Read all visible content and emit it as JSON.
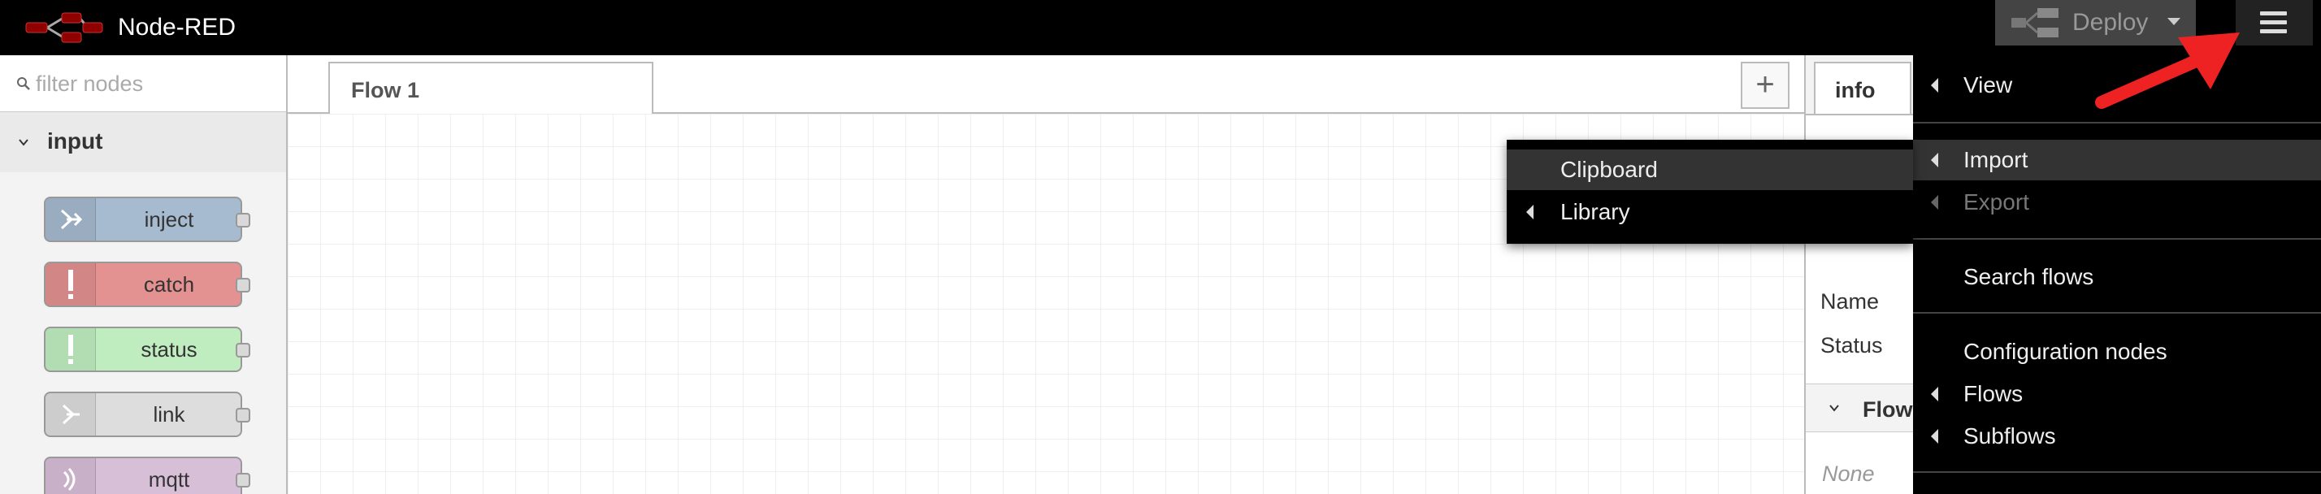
{
  "app": {
    "title": "Node-RED"
  },
  "header": {
    "deploy_label": "Deploy",
    "menu_icon": "hamburger-menu-icon",
    "colors": {
      "background": "#000000",
      "logo": "#8f0000"
    }
  },
  "palette": {
    "filter_placeholder": "filter nodes",
    "category": {
      "label": "input",
      "expanded": true
    },
    "nodes": [
      {
        "label": "inject",
        "color": "#a6bbcf",
        "icon": "inject-arrow-icon"
      },
      {
        "label": "catch",
        "color": "#e49191",
        "icon": "exclamation-icon"
      },
      {
        "label": "status",
        "color": "#c0edc0",
        "icon": "exclamation-icon"
      },
      {
        "label": "link",
        "color": "#dddddd",
        "icon": "link-arrow-icon"
      },
      {
        "label": "mqtt",
        "color": "#d8bfd8",
        "icon": "wifi-signal-icon"
      }
    ]
  },
  "workspace": {
    "tabs": [
      {
        "label": "Flow 1",
        "active": true
      }
    ],
    "add_tab_label": "+"
  },
  "sidebar": {
    "tab_label": "info",
    "rows": {
      "name_label": "Name",
      "status_label": "Status"
    },
    "section_label": "Flows",
    "section_empty": "None"
  },
  "main_menu": {
    "items": [
      {
        "label": "View",
        "has_submenu": true,
        "state": "normal"
      },
      {
        "label": "Import",
        "has_submenu": true,
        "state": "hover"
      },
      {
        "label": "Export",
        "has_submenu": true,
        "state": "disabled"
      },
      {
        "label": "Search flows",
        "has_submenu": false,
        "state": "normal"
      },
      {
        "label": "Configuration nodes",
        "has_submenu": false,
        "state": "normal"
      },
      {
        "label": "Flows",
        "has_submenu": true,
        "state": "normal"
      },
      {
        "label": "Subflows",
        "has_submenu": true,
        "state": "normal"
      }
    ]
  },
  "import_submenu": {
    "items": [
      {
        "label": "Clipboard",
        "has_submenu": false,
        "state": "hover"
      },
      {
        "label": "Library",
        "has_submenu": true,
        "state": "normal"
      }
    ]
  },
  "annotation": {
    "arrow_color": "#ee2222"
  }
}
